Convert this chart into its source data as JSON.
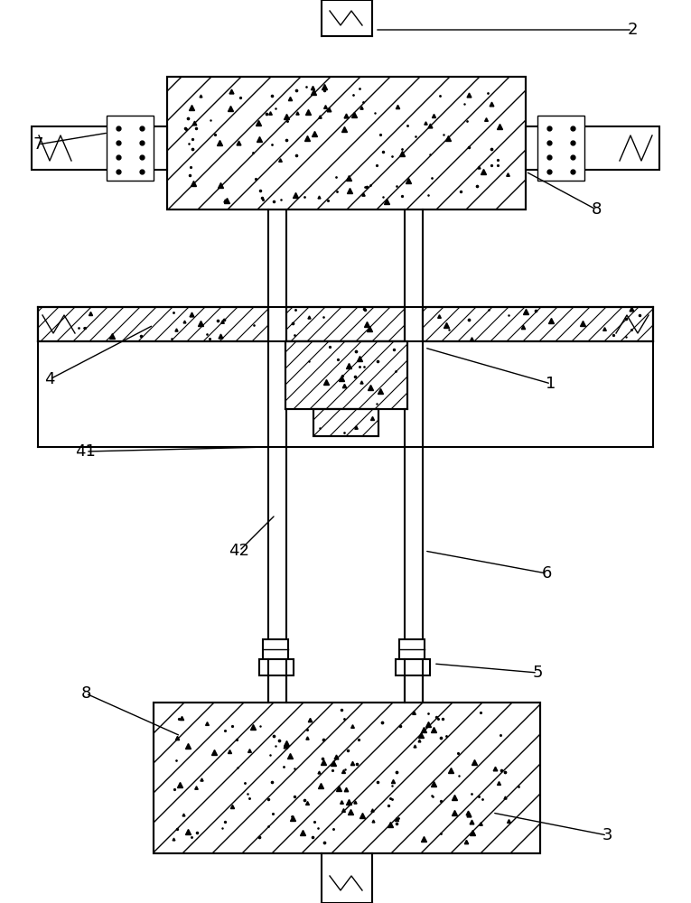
{
  "bg_color": "#ffffff",
  "line_color": "#000000",
  "fig_width": 7.65,
  "fig_height": 10.0
}
